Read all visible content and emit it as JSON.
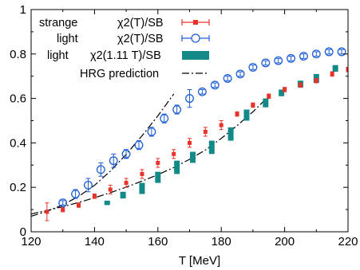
{
  "chart_data": {
    "type": "scatter",
    "title": "",
    "xlabel": "T [MeV]",
    "ylabel": "",
    "xlim": [
      120,
      220
    ],
    "ylim": [
      0,
      1
    ],
    "grid": false,
    "legend_position": "top-left",
    "x_ticks": [
      "120",
      "140",
      "160",
      "180",
      "200",
      "220"
    ],
    "y_ticks": [
      "0",
      "0.2",
      "0.4",
      "0.6",
      "0.8",
      "1"
    ],
    "x_tick_values": [
      120,
      140,
      160,
      180,
      200,
      220
    ],
    "y_tick_values": [
      0,
      0.2,
      0.4,
      0.6,
      0.8,
      1.0
    ],
    "series": [
      {
        "name": "strange",
        "label": "χ2(T)/SB",
        "marker": "square-errorbar",
        "color": "#e8322a",
        "points": [
          {
            "x": 125,
            "y": 0.09,
            "err": 0.04
          },
          {
            "x": 130,
            "y": 0.1,
            "err": 0.01
          },
          {
            "x": 135,
            "y": 0.12,
            "err": 0.01
          },
          {
            "x": 140,
            "y": 0.16,
            "err": 0.01
          },
          {
            "x": 145,
            "y": 0.19,
            "err": 0.02
          },
          {
            "x": 150,
            "y": 0.22,
            "err": 0.02
          },
          {
            "x": 155,
            "y": 0.26,
            "err": 0.02
          },
          {
            "x": 160,
            "y": 0.31,
            "err": 0.02
          },
          {
            "x": 165,
            "y": 0.35,
            "err": 0.02
          },
          {
            "x": 170,
            "y": 0.4,
            "err": 0.02
          },
          {
            "x": 175,
            "y": 0.45,
            "err": 0.02
          },
          {
            "x": 180,
            "y": 0.48,
            "err": 0.02
          },
          {
            "x": 185,
            "y": 0.53,
            "err": 0.01
          },
          {
            "x": 190,
            "y": 0.57,
            "err": 0.01
          },
          {
            "x": 195,
            "y": 0.61,
            "err": 0.01
          },
          {
            "x": 200,
            "y": 0.64,
            "err": 0.01
          },
          {
            "x": 205,
            "y": 0.66,
            "err": 0.01
          },
          {
            "x": 210,
            "y": 0.68,
            "err": 0.01
          },
          {
            "x": 215,
            "y": 0.71,
            "err": 0.01
          },
          {
            "x": 220,
            "y": 0.73,
            "err": 0.01
          }
        ]
      },
      {
        "name": "light",
        "label": "χ2(T)/SB",
        "marker": "open-circle-errorbar",
        "color": "#1f5fd6",
        "points": [
          {
            "x": 130,
            "y": 0.13,
            "err": 0.01
          },
          {
            "x": 134,
            "y": 0.17,
            "err": 0.02
          },
          {
            "x": 138,
            "y": 0.21,
            "err": 0.03
          },
          {
            "x": 142,
            "y": 0.28,
            "err": 0.03
          },
          {
            "x": 146,
            "y": 0.32,
            "err": 0.03
          },
          {
            "x": 150,
            "y": 0.35,
            "err": 0.02
          },
          {
            "x": 154,
            "y": 0.39,
            "err": 0.02
          },
          {
            "x": 158,
            "y": 0.45,
            "err": 0.02
          },
          {
            "x": 162,
            "y": 0.51,
            "err": 0.02
          },
          {
            "x": 166,
            "y": 0.55,
            "err": 0.02
          },
          {
            "x": 170,
            "y": 0.6,
            "err": 0.04
          },
          {
            "x": 174,
            "y": 0.63,
            "err": 0.01
          },
          {
            "x": 178,
            "y": 0.66,
            "err": 0.01
          },
          {
            "x": 182,
            "y": 0.69,
            "err": 0.01
          },
          {
            "x": 186,
            "y": 0.71,
            "err": 0.01
          },
          {
            "x": 190,
            "y": 0.74,
            "err": 0.01
          },
          {
            "x": 194,
            "y": 0.76,
            "err": 0.01
          },
          {
            "x": 198,
            "y": 0.77,
            "err": 0.01
          },
          {
            "x": 202,
            "y": 0.78,
            "err": 0.01
          },
          {
            "x": 206,
            "y": 0.79,
            "err": 0.01
          },
          {
            "x": 210,
            "y": 0.8,
            "err": 0.01
          },
          {
            "x": 214,
            "y": 0.81,
            "err": 0.01
          },
          {
            "x": 218,
            "y": 0.81,
            "err": 0.01
          }
        ]
      },
      {
        "name": "light",
        "label": "χ2(1.11 T)/SB",
        "marker": "filled-band",
        "color": "#138a87",
        "points": [
          {
            "x": 144,
            "y_low": 0.12,
            "y_high": 0.14
          },
          {
            "x": 149,
            "y_low": 0.15,
            "y_high": 0.18
          },
          {
            "x": 155,
            "y_low": 0.17,
            "y_high": 0.22
          },
          {
            "x": 160,
            "y_low": 0.22,
            "y_high": 0.27
          },
          {
            "x": 166,
            "y_low": 0.26,
            "y_high": 0.32
          },
          {
            "x": 171,
            "y_low": 0.31,
            "y_high": 0.36
          },
          {
            "x": 177,
            "y_low": 0.35,
            "y_high": 0.41
          },
          {
            "x": 183,
            "y_low": 0.41,
            "y_high": 0.47
          },
          {
            "x": 188,
            "y_low": 0.5,
            "y_high": 0.55
          },
          {
            "x": 194,
            "y_low": 0.56,
            "y_high": 0.6
          },
          {
            "x": 199,
            "y_low": 0.61,
            "y_high": 0.64
          },
          {
            "x": 205,
            "y_low": 0.65,
            "y_high": 0.68
          },
          {
            "x": 210,
            "y_low": 0.67,
            "y_high": 0.71
          },
          {
            "x": 216,
            "y_low": 0.72,
            "y_high": 0.75
          },
          {
            "x": 221,
            "y_low": 0.75,
            "y_high": 0.79
          }
        ]
      }
    ],
    "lines": [
      {
        "name": "HRG prediction",
        "style": "dash-dot",
        "color": "#000000",
        "points": [
          {
            "x": 120,
            "y": 0.08
          },
          {
            "x": 125,
            "y": 0.096
          },
          {
            "x": 130,
            "y": 0.113
          },
          {
            "x": 135,
            "y": 0.132
          },
          {
            "x": 140,
            "y": 0.153
          },
          {
            "x": 145,
            "y": 0.176
          },
          {
            "x": 150,
            "y": 0.201
          },
          {
            "x": 155,
            "y": 0.228
          },
          {
            "x": 160,
            "y": 0.257
          },
          {
            "x": 165,
            "y": 0.289
          },
          {
            "x": 170,
            "y": 0.326
          },
          {
            "x": 175,
            "y": 0.368
          },
          {
            "x": 180,
            "y": 0.42
          },
          {
            "x": 185,
            "y": 0.478
          },
          {
            "x": 190,
            "y": 0.54
          },
          {
            "x": 195,
            "y": 0.61
          }
        ]
      },
      {
        "name": "",
        "style": "dash-dot",
        "color": "#000000",
        "points": [
          {
            "x": 120,
            "y": 0.07
          },
          {
            "x": 125,
            "y": 0.092
          },
          {
            "x": 130,
            "y": 0.121
          },
          {
            "x": 135,
            "y": 0.159
          },
          {
            "x": 140,
            "y": 0.209
          },
          {
            "x": 145,
            "y": 0.273
          },
          {
            "x": 150,
            "y": 0.348
          },
          {
            "x": 155,
            "y": 0.432
          },
          {
            "x": 160,
            "y": 0.522
          },
          {
            "x": 165,
            "y": 0.62
          }
        ]
      }
    ]
  },
  "legend": {
    "row1_name": "strange",
    "row1_label": "χ2(T)/SB",
    "row2_name": "light",
    "row2_label": "χ2(T)/SB",
    "row3_name": "light",
    "row3_label": "χ2(1.11 T)/SB",
    "row4_label": "HRG prediction"
  }
}
